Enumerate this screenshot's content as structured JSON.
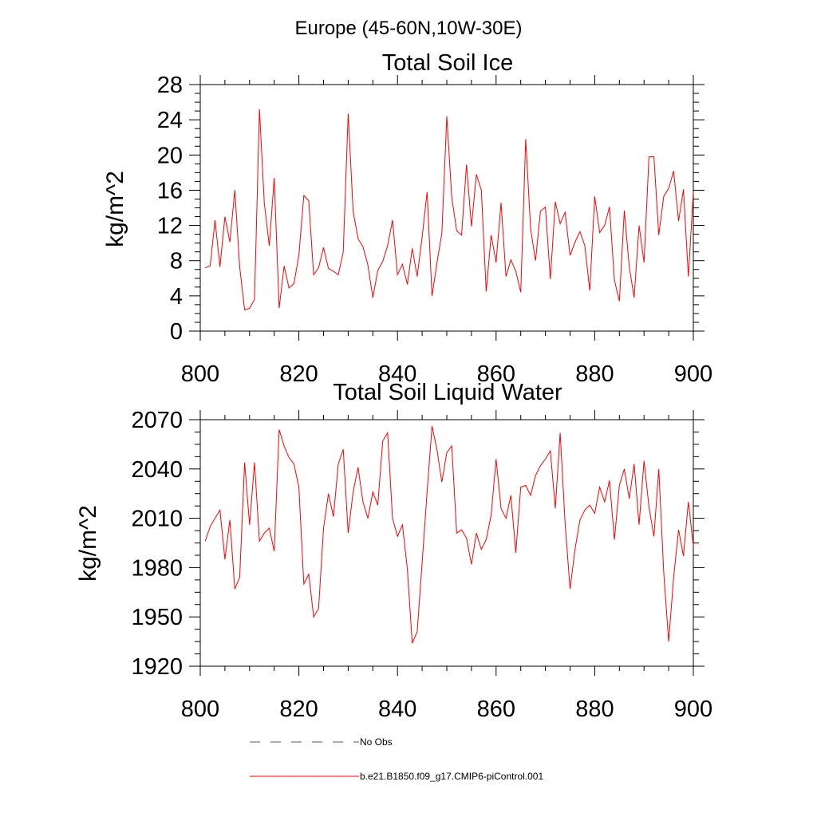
{
  "figure_title": "Europe (45-60N,10W-30E)",
  "legend": [
    {
      "label": "No Obs",
      "style": "dashed",
      "color": "#4a5a8a"
    },
    {
      "label": "b.e21.B1850.f09_g17.CMIP6-piControl.001",
      "style": "solid",
      "color": "#ff0000"
    }
  ],
  "chart_data": [
    {
      "type": "line",
      "title": "Total Soil Ice",
      "xlabel": "",
      "ylabel": "kg/m^2",
      "xlim": [
        800,
        900
      ],
      "ylim": [
        0,
        28
      ],
      "xticks": [
        800,
        820,
        840,
        860,
        880,
        900
      ],
      "yticks": [
        0,
        4,
        8,
        12,
        16,
        20,
        24,
        28
      ],
      "series": [
        {
          "name": "b.e21.B1850.f09_g17.CMIP6-piControl.001",
          "color": "#ff0000",
          "x": [
            801,
            802,
            803,
            804,
            805,
            806,
            807,
            808,
            809,
            810,
            811,
            812,
            813,
            814,
            815,
            816,
            817,
            818,
            819,
            820,
            821,
            822,
            823,
            824,
            825,
            826,
            827,
            828,
            829,
            830,
            831,
            832,
            833,
            834,
            835,
            836,
            837,
            838,
            839,
            840,
            841,
            842,
            843,
            844,
            845,
            846,
            847,
            848,
            849,
            850,
            851,
            852,
            853,
            854,
            855,
            856,
            857,
            858,
            859,
            860,
            861,
            862,
            863,
            864,
            865,
            866,
            867,
            868,
            869,
            870,
            871,
            872,
            873,
            874,
            875,
            876,
            877,
            878,
            879,
            880,
            881,
            882,
            883,
            884,
            885,
            886,
            887,
            888,
            889,
            890,
            891,
            892,
            893,
            894,
            895,
            896,
            897,
            898,
            899,
            900
          ],
          "values": [
            7.2,
            7.4,
            12.6,
            7.3,
            13.0,
            10.1,
            16.0,
            7.3,
            2.4,
            2.6,
            3.6,
            25.2,
            14.5,
            9.7,
            17.4,
            2.6,
            7.4,
            4.9,
            5.4,
            8.6,
            15.4,
            14.8,
            6.4,
            7.2,
            9.5,
            7.1,
            6.8,
            6.4,
            9.0,
            24.7,
            13.6,
            10.5,
            9.6,
            7.5,
            3.8,
            6.9,
            7.9,
            9.7,
            12.6,
            6.4,
            7.6,
            5.3,
            9.4,
            6.2,
            10.7,
            15.8,
            4.0,
            7.7,
            11.1,
            24.4,
            15.2,
            11.4,
            10.9,
            18.9,
            11.9,
            17.8,
            16.0,
            4.5,
            10.9,
            7.8,
            14.6,
            6.2,
            8.1,
            6.8,
            4.4,
            21.8,
            11.6,
            8.0,
            13.6,
            14.1,
            5.9,
            14.7,
            12.2,
            13.5,
            8.6,
            10.1,
            11.3,
            9.7,
            4.6,
            15.3,
            11.2,
            12.0,
            14.1,
            5.8,
            3.4,
            13.7,
            7.3,
            3.8,
            12.0,
            7.8,
            19.8,
            19.8,
            10.9,
            15.3,
            16.2,
            18.2,
            12.5,
            16.1,
            6.2,
            15.8
          ]
        }
      ]
    },
    {
      "type": "line",
      "title": "Total Soil Liquid Water",
      "xlabel": "",
      "ylabel": "kg/m^2",
      "xlim": [
        800,
        900
      ],
      "ylim": [
        1920,
        2070
      ],
      "xticks": [
        800,
        820,
        840,
        860,
        880,
        900
      ],
      "yticks": [
        1920,
        1950,
        1980,
        2010,
        2040,
        2070
      ],
      "series": [
        {
          "name": "b.e21.B1850.f09_g17.CMIP6-piControl.001",
          "color": "#ff0000",
          "x": [
            801,
            802,
            803,
            804,
            805,
            806,
            807,
            808,
            809,
            810,
            811,
            812,
            813,
            814,
            815,
            816,
            817,
            818,
            819,
            820,
            821,
            822,
            823,
            824,
            825,
            826,
            827,
            828,
            829,
            830,
            831,
            832,
            833,
            834,
            835,
            836,
            837,
            838,
            839,
            840,
            841,
            842,
            843,
            844,
            845,
            846,
            847,
            848,
            849,
            850,
            851,
            852,
            853,
            854,
            855,
            856,
            857,
            858,
            859,
            860,
            861,
            862,
            863,
            864,
            865,
            866,
            867,
            868,
            869,
            870,
            871,
            872,
            873,
            874,
            875,
            876,
            877,
            878,
            879,
            880,
            881,
            882,
            883,
            884,
            885,
            886,
            887,
            888,
            889,
            890,
            891,
            892,
            893,
            894,
            895,
            896,
            897,
            898,
            899,
            900
          ],
          "values": [
            1996,
            2005,
            2010,
            2015,
            1985,
            2009,
            1967,
            1974,
            2044,
            2006,
            2044,
            1996,
            2001,
            2004,
            1990,
            2064,
            2054,
            2047,
            2043,
            2029,
            1970,
            1976,
            1950,
            1955,
            2004,
            2025,
            2011,
            2043,
            2052,
            2001,
            2026,
            2041,
            2020,
            2010,
            2026,
            2018,
            2057,
            2062,
            2010,
            1999,
            2006,
            1979,
            1934,
            1941,
            1983,
            2026,
            2066,
            2052,
            2032,
            2050,
            2054,
            2001,
            2003,
            1998,
            1982,
            2001,
            1991,
            1997,
            2012,
            2046,
            2016,
            2010,
            2024,
            1989,
            2029,
            2030,
            2024,
            2036,
            2042,
            2046,
            2051,
            2016,
            2062,
            2007,
            1967,
            1991,
            2009,
            2015,
            2018,
            2013,
            2029,
            2020,
            2033,
            1997,
            2030,
            2040,
            2022,
            2043,
            2006,
            2045,
            2017,
            1999,
            2040,
            1977,
            1935,
            1974,
            2003,
            1987,
            2020,
            1993
          ]
        }
      ]
    }
  ]
}
